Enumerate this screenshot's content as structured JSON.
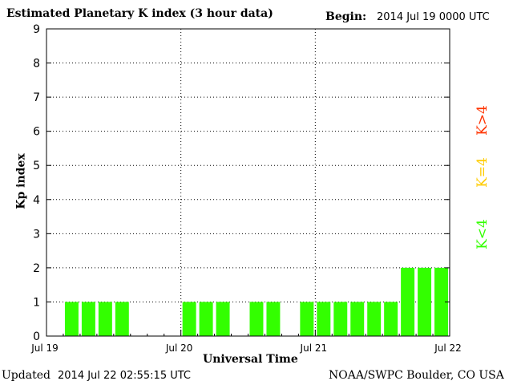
{
  "header": {
    "title": "Estimated Planetary K index (3 hour data)",
    "begin_label": "Begin:",
    "begin_value": "2014 Jul 19 0000 UTC"
  },
  "footer": {
    "updated_label": "Updated",
    "updated_value": "2014 Jul 22 02:55:15 UTC",
    "source": "NOAA/SWPC Boulder, CO USA"
  },
  "legend": {
    "high": "K>4",
    "equal": "K=4",
    "low": "K<4",
    "colors": {
      "high": "#ff3300",
      "equal": "#ffcc00",
      "low": "#33ff00"
    }
  },
  "chart_data": {
    "type": "bar",
    "title": "Estimated Planetary K index (3 hour data)",
    "xlabel": "Universal Time",
    "ylabel": "Kp index",
    "ylim": [
      0,
      9
    ],
    "yticks": [
      "0",
      "1",
      "2",
      "3",
      "4",
      "5",
      "6",
      "7",
      "8",
      "9"
    ],
    "xticks": [
      "Jul 19",
      "Jul 20",
      "Jul 21",
      "Jul 22"
    ],
    "grid": true,
    "bar_color": "#33ff00",
    "interval_hours": 3,
    "bars": [
      {
        "slot": 1,
        "value": 1
      },
      {
        "slot": 2,
        "value": 1
      },
      {
        "slot": 3,
        "value": 1
      },
      {
        "slot": 4,
        "value": 1
      },
      {
        "slot": 8,
        "value": 1
      },
      {
        "slot": 9,
        "value": 1
      },
      {
        "slot": 10,
        "value": 1
      },
      {
        "slot": 12,
        "value": 1
      },
      {
        "slot": 13,
        "value": 1
      },
      {
        "slot": 15,
        "value": 1
      },
      {
        "slot": 16,
        "value": 1
      },
      {
        "slot": 17,
        "value": 1
      },
      {
        "slot": 18,
        "value": 1
      },
      {
        "slot": 19,
        "value": 1
      },
      {
        "slot": 20,
        "value": 1
      },
      {
        "slot": 21,
        "value": 2
      },
      {
        "slot": 22,
        "value": 2
      },
      {
        "slot": 23,
        "value": 2
      }
    ]
  }
}
